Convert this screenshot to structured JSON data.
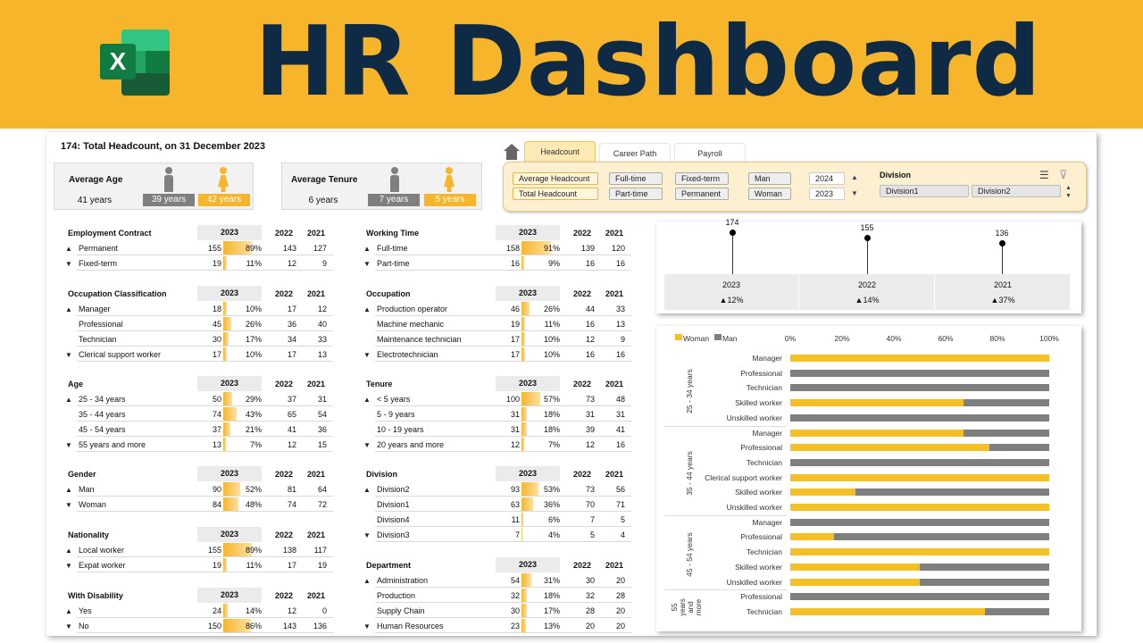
{
  "banner": {
    "title": "HR Dashboard",
    "logo_letter": "X",
    "logo_icon": "excel-logo-icon"
  },
  "headline": "174: Total Headcount, on 31 December 2023",
  "avg_age": {
    "label": "Average Age",
    "total": "41 years",
    "man": "39 years",
    "woman": "42 years"
  },
  "avg_tenure": {
    "label": "Average Tenure",
    "total": "6 years",
    "man": "7 years",
    "woman": "5 years"
  },
  "tabs": [
    "Headcount",
    "Career Path",
    "Payroll"
  ],
  "slicers": {
    "measure": [
      "Average Headcount",
      "Total Headcount"
    ],
    "working_time": [
      "Full-time",
      "Part-time"
    ],
    "contract": [
      "Fixed-term",
      "Permanent"
    ],
    "gender": [
      "Man",
      "Woman"
    ],
    "years": [
      "2024",
      "2023"
    ],
    "division_label": "Division",
    "divisions": [
      "Division1",
      "Division2"
    ]
  },
  "colors": {
    "accent": "#f7b52c",
    "navy": "#0f2a44",
    "gray": "#7f7f7f"
  },
  "tables": [
    {
      "title": "Employment Contract",
      "rows": [
        {
          "label": "Permanent",
          "n": 155,
          "pct": "89%",
          "v22": 143,
          "v21": 127,
          "frac": 0.89
        },
        {
          "label": "Fixed-term",
          "n": 19,
          "pct": "11%",
          "v22": 12,
          "v21": 9,
          "frac": 0.11
        }
      ]
    },
    {
      "title": "Working Time",
      "rows": [
        {
          "label": "Full-time",
          "n": 158,
          "pct": "91%",
          "v22": 139,
          "v21": 120,
          "frac": 0.91
        },
        {
          "label": "Part-time",
          "n": 16,
          "pct": "9%",
          "v22": 16,
          "v21": 16,
          "frac": 0.09
        }
      ]
    },
    {
      "title": "Occupation Classification",
      "rows": [
        {
          "label": "Manager",
          "n": 18,
          "pct": "10%",
          "v22": 17,
          "v21": 12,
          "frac": 0.1
        },
        {
          "label": "Professional",
          "n": 45,
          "pct": "26%",
          "v22": 36,
          "v21": 40,
          "frac": 0.26
        },
        {
          "label": "Technician",
          "n": 30,
          "pct": "17%",
          "v22": 34,
          "v21": 33,
          "frac": 0.17
        },
        {
          "label": "Clerical support worker",
          "n": 17,
          "pct": "10%",
          "v22": 17,
          "v21": 13,
          "frac": 0.1
        }
      ]
    },
    {
      "title": "Occupation",
      "rows": [
        {
          "label": "Production operator",
          "n": 46,
          "pct": "26%",
          "v22": 44,
          "v21": 33,
          "frac": 0.26
        },
        {
          "label": "Machine mechanic",
          "n": 19,
          "pct": "11%",
          "v22": 16,
          "v21": 13,
          "frac": 0.11
        },
        {
          "label": "Maintenance technician",
          "n": 17,
          "pct": "10%",
          "v22": 12,
          "v21": 9,
          "frac": 0.1
        },
        {
          "label": "Electrotechnician",
          "n": 17,
          "pct": "10%",
          "v22": 16,
          "v21": 16,
          "frac": 0.1
        }
      ]
    },
    {
      "title": "Age",
      "rows": [
        {
          "label": "25 - 34 years",
          "n": 50,
          "pct": "29%",
          "v22": 37,
          "v21": 31,
          "frac": 0.29
        },
        {
          "label": "35 - 44 years",
          "n": 74,
          "pct": "43%",
          "v22": 65,
          "v21": 54,
          "frac": 0.43
        },
        {
          "label": "45 - 54 years",
          "n": 37,
          "pct": "21%",
          "v22": 41,
          "v21": 36,
          "frac": 0.21
        },
        {
          "label": "55 years and more",
          "n": 13,
          "pct": "7%",
          "v22": 12,
          "v21": 15,
          "frac": 0.07
        }
      ]
    },
    {
      "title": "Tenure",
      "rows": [
        {
          "label": "< 5 years",
          "n": 100,
          "pct": "57%",
          "v22": 73,
          "v21": 48,
          "frac": 0.57
        },
        {
          "label": "5 - 9 years",
          "n": 31,
          "pct": "18%",
          "v22": 31,
          "v21": 31,
          "frac": 0.18
        },
        {
          "label": "10 - 19 years",
          "n": 31,
          "pct": "18%",
          "v22": 39,
          "v21": 41,
          "frac": 0.18
        },
        {
          "label": "20 years and more",
          "n": 12,
          "pct": "7%",
          "v22": 12,
          "v21": 16,
          "frac": 0.07
        }
      ]
    },
    {
      "title": "Gender",
      "rows": [
        {
          "label": "Man",
          "n": 90,
          "pct": "52%",
          "v22": 81,
          "v21": 64,
          "frac": 0.52
        },
        {
          "label": "Woman",
          "n": 84,
          "pct": "48%",
          "v22": 74,
          "v21": 72,
          "frac": 0.48
        }
      ]
    },
    {
      "title": "Division",
      "rows": [
        {
          "label": "Division2",
          "n": 93,
          "pct": "53%",
          "v22": 73,
          "v21": 56,
          "frac": 0.53
        },
        {
          "label": "Division1",
          "n": 63,
          "pct": "36%",
          "v22": 70,
          "v21": 71,
          "frac": 0.36
        },
        {
          "label": "Division4",
          "n": 11,
          "pct": "6%",
          "v22": 7,
          "v21": 5,
          "frac": 0.06
        },
        {
          "label": "Division3",
          "n": 7,
          "pct": "4%",
          "v22": 5,
          "v21": 4,
          "frac": 0.04
        }
      ]
    },
    {
      "title": "Nationality",
      "rows": [
        {
          "label": "Local worker",
          "n": 155,
          "pct": "89%",
          "v22": 138,
          "v21": 117,
          "frac": 0.89
        },
        {
          "label": "Expat worker",
          "n": 19,
          "pct": "11%",
          "v22": 17,
          "v21": 19,
          "frac": 0.11
        }
      ]
    },
    {
      "title": "Department",
      "rows": [
        {
          "label": "Administration",
          "n": 54,
          "pct": "31%",
          "v22": 30,
          "v21": 20,
          "frac": 0.31
        },
        {
          "label": "Production",
          "n": 32,
          "pct": "18%",
          "v22": 32,
          "v21": 28,
          "frac": 0.18
        },
        {
          "label": "Supply Chain",
          "n": 30,
          "pct": "17%",
          "v22": 28,
          "v21": 20,
          "frac": 0.17
        },
        {
          "label": "Human Resources",
          "n": 23,
          "pct": "13%",
          "v22": 20,
          "v21": 20,
          "frac": 0.13
        }
      ]
    },
    {
      "title": "With Disability",
      "rows": [
        {
          "label": "Yes",
          "n": 24,
          "pct": "14%",
          "v22": 12,
          "v21": 0,
          "frac": 0.14
        },
        {
          "label": "No",
          "n": 150,
          "pct": "86%",
          "v22": 143,
          "v21": 136,
          "frac": 0.86
        }
      ]
    }
  ],
  "table_years": [
    "2023",
    "2022",
    "2021"
  ],
  "trend": {
    "years": [
      "2023",
      "2022",
      "2021"
    ],
    "values": [
      174,
      155,
      136
    ],
    "changes": [
      "▲12%",
      "▲14%",
      "▲37%"
    ]
  },
  "chart_data": {
    "type": "bar",
    "orientation": "horizontal-stacked-100",
    "legend": [
      "Woman",
      "Man"
    ],
    "x_ticks": [
      "0%",
      "20%",
      "40%",
      "60%",
      "80%",
      "100%"
    ],
    "groups": [
      {
        "name": "25 - 34 years",
        "items": [
          {
            "label": "Manager",
            "woman": 1.0
          },
          {
            "label": "Professional",
            "woman": 0.0
          },
          {
            "label": "Technician",
            "woman": 0.0
          },
          {
            "label": "Skilled worker",
            "woman": 0.67
          },
          {
            "label": "Unskilled worker",
            "woman": 0.0
          }
        ]
      },
      {
        "name": "35 - 44 years",
        "items": [
          {
            "label": "Manager",
            "woman": 0.67
          },
          {
            "label": "Professional",
            "woman": 0.77
          },
          {
            "label": "Technician",
            "woman": 0.0
          },
          {
            "label": "Clerical support worker",
            "woman": 1.0
          },
          {
            "label": "Skilled worker",
            "woman": 0.25
          },
          {
            "label": "Unskilled worker",
            "woman": 1.0
          }
        ]
      },
      {
        "name": "45 - 54 years",
        "items": [
          {
            "label": "Manager",
            "woman": 0.0
          },
          {
            "label": "Professional",
            "woman": 0.17
          },
          {
            "label": "Technician",
            "woman": 1.0
          },
          {
            "label": "Skilled worker",
            "woman": 0.5
          },
          {
            "label": "Unskilled worker",
            "woman": 0.5
          }
        ]
      },
      {
        "name": "55 years and more",
        "items": [
          {
            "label": "Professional",
            "woman": 0.0
          },
          {
            "label": "Technician",
            "woman": 0.75
          }
        ]
      }
    ]
  }
}
